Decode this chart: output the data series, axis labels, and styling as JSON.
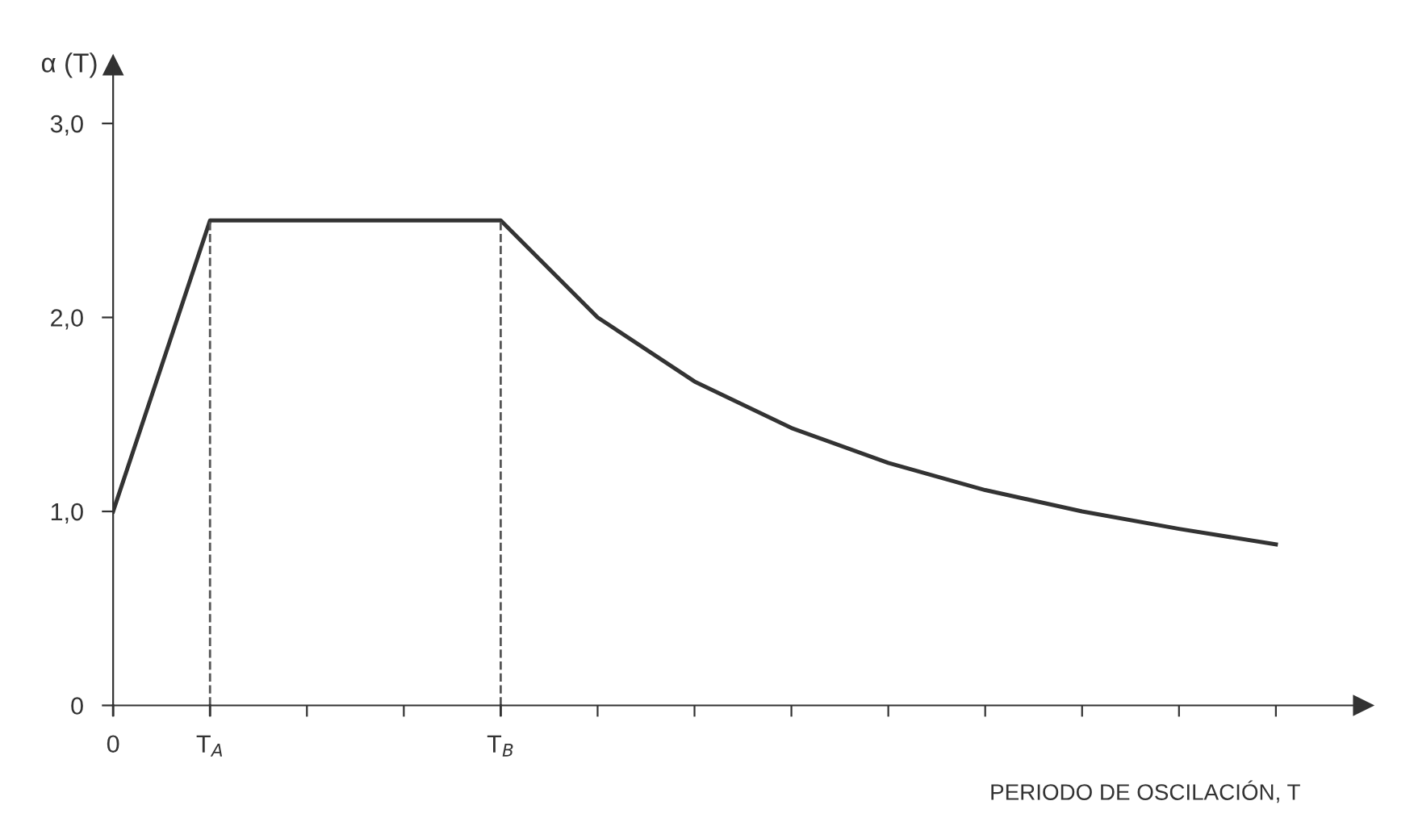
{
  "chart_data": {
    "type": "line",
    "xlabel": "PERIODO DE OSCILACIÓN, T",
    "ylabel": "α (T)",
    "categories": [
      "0",
      "T$_{A}$",
      null,
      null,
      "T$_{B}$",
      null,
      null,
      null,
      null,
      null,
      null,
      null,
      null
    ],
    "series": [
      {
        "color": "#333333",
        "values": [
          1.0,
          2.5,
          2.5,
          2.5,
          2.5,
          2.0,
          1.67,
          1.43,
          1.25,
          1.11,
          1.0,
          0.91,
          0.83
        ]
      }
    ],
    "ylim": [
      0,
      3.3
    ],
    "yticks": [
      0,
      {
        "value": 1,
        "label": "1,0"
      },
      {
        "value": 2,
        "label": "2,0"
      },
      {
        "value": 3,
        "label": "3,0"
      }
    ],
    "ref_lines": [
      {
        "axis": "x",
        "value": "T$_{A}$",
        "color": "#555555",
        "line_style": "dashed"
      },
      {
        "axis": "x",
        "value": "T$_{B}$",
        "color": "#555555",
        "line_style": "dashed"
      }
    ],
    "grid": false,
    "legend": false,
    "marker": "none",
    "line_style": "solid"
  }
}
